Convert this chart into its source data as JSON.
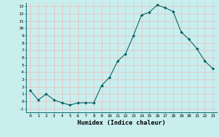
{
  "x": [
    0,
    1,
    2,
    3,
    4,
    5,
    6,
    7,
    8,
    9,
    10,
    11,
    12,
    13,
    14,
    15,
    16,
    17,
    18,
    19,
    20,
    21,
    22,
    23
  ],
  "y": [
    1.5,
    0.2,
    1.0,
    0.2,
    -0.2,
    -0.5,
    -0.2,
    -0.2,
    -0.2,
    2.2,
    3.3,
    5.5,
    6.5,
    9.0,
    11.8,
    12.2,
    13.2,
    12.8,
    12.3,
    9.5,
    8.5,
    7.2,
    5.5,
    4.5
  ],
  "xlabel": "Humidex (Indice chaleur)",
  "bg_color": "#c8eeee",
  "grid_color": "#f0b8b8",
  "line_color": "#006060",
  "marker_color": "#006060",
  "ylim": [
    -1.5,
    13.5
  ],
  "xlim": [
    -0.5,
    23.5
  ],
  "yticks": [
    -1,
    0,
    1,
    2,
    3,
    4,
    5,
    6,
    7,
    8,
    9,
    10,
    11,
    12,
    13
  ],
  "xticks": [
    0,
    1,
    2,
    3,
    4,
    5,
    6,
    7,
    8,
    9,
    10,
    11,
    12,
    13,
    14,
    15,
    16,
    17,
    18,
    19,
    20,
    21,
    22,
    23
  ],
  "tick_fontsize": 4.5,
  "xlabel_fontsize": 6.5,
  "marker_size": 2.0,
  "linewidth": 0.8
}
